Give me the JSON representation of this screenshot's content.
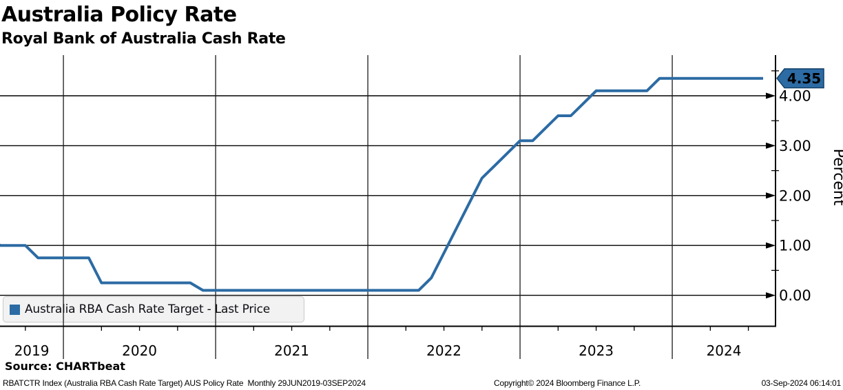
{
  "header": {
    "title": "Australia Policy Rate",
    "subtitle": "Royal Bank of Australia Cash Rate"
  },
  "chart_data": {
    "type": "line",
    "title": "Australia Policy Rate",
    "subtitle": "Royal Bank of Australia Cash Rate",
    "ylabel": "Percent",
    "ylim": [
      -0.63,
      4.8
    ],
    "grid": true,
    "legend_position": "bottom-left",
    "yticks": [
      {
        "value": 0,
        "label": "0.00"
      },
      {
        "value": 1,
        "label": "1.00"
      },
      {
        "value": 2,
        "label": "2.00"
      },
      {
        "value": 3,
        "label": "3.00"
      },
      {
        "value": 4,
        "label": "4.00"
      }
    ],
    "ytick_minor_values": [
      0.5,
      1.5,
      2.5,
      3.5,
      4.5
    ],
    "x_year_labels": [
      "2019",
      "2020",
      "2021",
      "2022",
      "2023",
      "2024"
    ],
    "last_price": {
      "value": 4.35,
      "label": "4.35"
    },
    "series": [
      {
        "name": "Australia RBA Cash Rate Target - Last Price",
        "color": "#2c6ba4",
        "tag_border_color": "#123f66",
        "points": [
          [
            "2019-06",
            1.25
          ],
          [
            "2019-07",
            1.0
          ],
          [
            "2019-08",
            1.0
          ],
          [
            "2019-09",
            1.0
          ],
          [
            "2019-10",
            0.75
          ],
          [
            "2019-11",
            0.75
          ],
          [
            "2019-12",
            0.75
          ],
          [
            "2020-01",
            0.75
          ],
          [
            "2020-02",
            0.75
          ],
          [
            "2020-03",
            0.25
          ],
          [
            "2020-04",
            0.25
          ],
          [
            "2020-05",
            0.25
          ],
          [
            "2020-06",
            0.25
          ],
          [
            "2020-07",
            0.25
          ],
          [
            "2020-08",
            0.25
          ],
          [
            "2020-09",
            0.25
          ],
          [
            "2020-10",
            0.25
          ],
          [
            "2020-11",
            0.1
          ],
          [
            "2020-12",
            0.1
          ],
          [
            "2021-01",
            0.1
          ],
          [
            "2021-02",
            0.1
          ],
          [
            "2021-03",
            0.1
          ],
          [
            "2021-04",
            0.1
          ],
          [
            "2021-05",
            0.1
          ],
          [
            "2021-06",
            0.1
          ],
          [
            "2021-07",
            0.1
          ],
          [
            "2021-08",
            0.1
          ],
          [
            "2021-09",
            0.1
          ],
          [
            "2021-10",
            0.1
          ],
          [
            "2021-11",
            0.1
          ],
          [
            "2021-12",
            0.1
          ],
          [
            "2022-01",
            0.1
          ],
          [
            "2022-02",
            0.1
          ],
          [
            "2022-03",
            0.1
          ],
          [
            "2022-04",
            0.1
          ],
          [
            "2022-05",
            0.35
          ],
          [
            "2022-06",
            0.85
          ],
          [
            "2022-07",
            1.35
          ],
          [
            "2022-08",
            1.85
          ],
          [
            "2022-09",
            2.35
          ],
          [
            "2022-10",
            2.6
          ],
          [
            "2022-11",
            2.85
          ],
          [
            "2022-12",
            3.1
          ],
          [
            "2023-01",
            3.1
          ],
          [
            "2023-02",
            3.35
          ],
          [
            "2023-03",
            3.6
          ],
          [
            "2023-04",
            3.6
          ],
          [
            "2023-05",
            3.85
          ],
          [
            "2023-06",
            4.1
          ],
          [
            "2023-07",
            4.1
          ],
          [
            "2023-08",
            4.1
          ],
          [
            "2023-09",
            4.1
          ],
          [
            "2023-10",
            4.1
          ],
          [
            "2023-11",
            4.35
          ],
          [
            "2023-12",
            4.35
          ],
          [
            "2024-01",
            4.35
          ],
          [
            "2024-02",
            4.35
          ],
          [
            "2024-03",
            4.35
          ],
          [
            "2024-04",
            4.35
          ],
          [
            "2024-05",
            4.35
          ],
          [
            "2024-06",
            4.35
          ],
          [
            "2024-07",
            4.35
          ],
          [
            "2024-08",
            4.35
          ],
          [
            "2024-09",
            4.35
          ]
        ]
      }
    ]
  },
  "legend": {
    "label": "Australia RBA Cash Rate Target - Last Price"
  },
  "footer": {
    "source": "Source: CHARTbeat",
    "description": "RBATCTR Index (Australia RBA Cash Rate Target) AUS Policy Rate  Monthly 29JUN2019-03SEP2024",
    "copyright": "Copyright© 2024 Bloomberg Finance L.P.",
    "timestamp": "03-Sep-2024 06:14:01"
  }
}
